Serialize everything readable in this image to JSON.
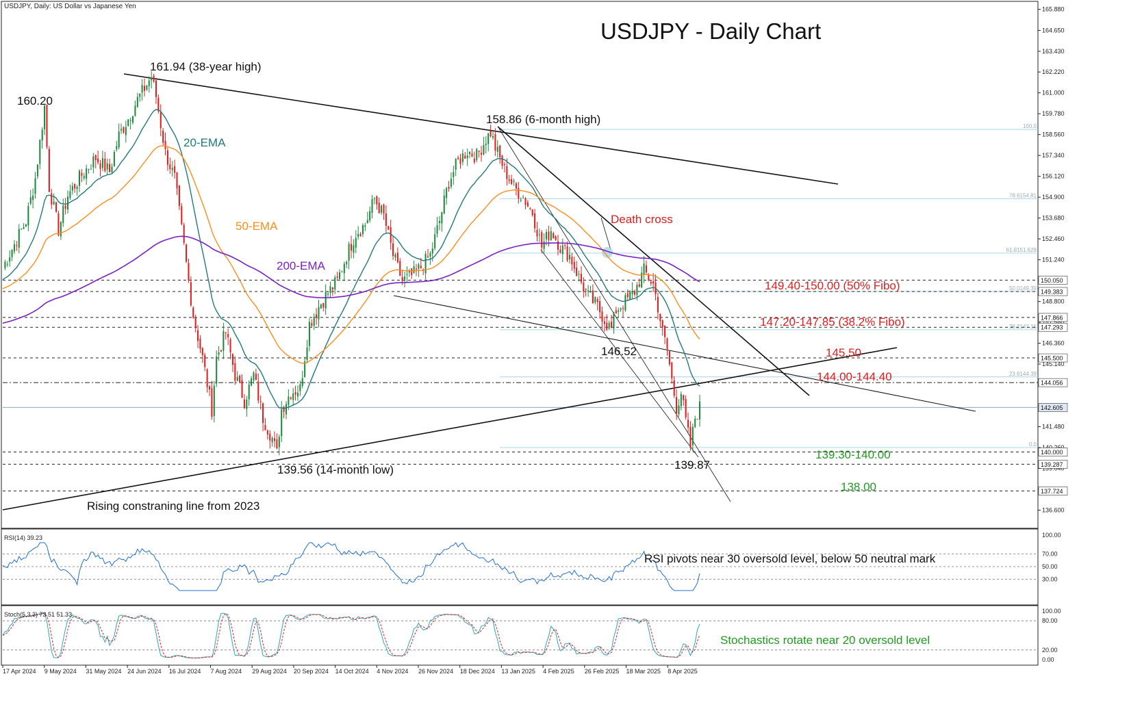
{
  "header": {
    "symbol_label": "USDJPY, Daily:  US Dollar vs Japanese Yen",
    "title": "USDJPY - Daily Chart"
  },
  "colors": {
    "bull": "#1a8a3a",
    "bear": "#e21b1b",
    "ema20": "#1f7a7a",
    "ema50": "#ff8c1a",
    "ema200": "#7a1fc2",
    "rsi": "#1f6fd6",
    "stoch_main": "#2aa6b8",
    "stoch_signal": "#e21b1b",
    "annot_red": "#e21b1b",
    "annot_green": "#1f9a1f",
    "fibo_line": "#a8d5e8"
  },
  "chart_data": [
    {
      "type": "candlestick",
      "title": "USDJPY - Daily Chart",
      "ylim": [
        135.8,
        166.2
      ],
      "price_axis_ticks": [
        "165.880",
        "164.650",
        "163.430",
        "162.220",
        "161.000",
        "159.780",
        "158.560",
        "157.340",
        "156.120",
        "154.900",
        "153.680",
        "152.460",
        "151.240",
        "150.020",
        "148.800",
        "147.580",
        "146.360",
        "145.140",
        "143.920",
        "142.700",
        "141.480",
        "140.260",
        "139.040",
        "137.820",
        "136.600"
      ],
      "price_axis_tags": [
        {
          "price": 150.05,
          "text": "150.050"
        },
        {
          "price": 149.383,
          "text": "149.383"
        },
        {
          "price": 147.866,
          "text": "147.866"
        },
        {
          "price": 147.293,
          "text": "147.293"
        },
        {
          "price": 145.5,
          "text": "145.500"
        },
        {
          "price": 144.056,
          "text": "144.056"
        },
        {
          "price": 142.605,
          "text": "142.605"
        },
        {
          "price": 140.0,
          "text": "140.000"
        },
        {
          "price": 139.287,
          "text": "139.287"
        },
        {
          "price": 137.724,
          "text": "137.724"
        }
      ],
      "date_labels": [
        "17 Apr 2024",
        "9 May 2024",
        "31 May 2024",
        "24 Jun 2024",
        "16 Jul 2024",
        "7 Aug 2024",
        "29 Aug 2024",
        "20 Sep 2024",
        "14 Oct 2024",
        "4 Nov 2024",
        "26 Nov 2024",
        "18 Dec 2024",
        "13 Jan 2025",
        "4 Feb 2025",
        "26 Feb 2025",
        "18 Mar 2025",
        "8 Apr 2025"
      ],
      "key_prices": [
        {
          "date": "2024-04-29",
          "price": 160.2,
          "label": "160.20"
        },
        {
          "date": "2024-07-03",
          "price": 161.94,
          "label": "161.94 (38-year high)"
        },
        {
          "date": "2024-09-16",
          "price": 139.56,
          "label": "139.56 (14-month low)"
        },
        {
          "date": "2025-01-10",
          "price": 158.86,
          "label": "158.86 (6-month high)"
        },
        {
          "date": "2025-03-11",
          "price": 146.52,
          "label": "146.52"
        },
        {
          "date": "2025-04-22",
          "price": 139.87,
          "label": "139.87"
        }
      ],
      "series": [
        {
          "name": "20-EMA"
        },
        {
          "name": "50-EMA"
        },
        {
          "name": "200-EMA"
        }
      ],
      "fibonacci_levels": [
        {
          "label": "100.0",
          "price": 158.86
        },
        {
          "label": "78.6154.81",
          "price": 154.81
        },
        {
          "label": "61.8151.628",
          "price": 151.628
        },
        {
          "label": "50.0149.39",
          "price": 149.39
        },
        {
          "label": "38.2147.15",
          "price": 147.15
        },
        {
          "label": "23.6144.39",
          "price": 144.39
        },
        {
          "label": "0.0",
          "price": 140.26
        }
      ],
      "annotations": [
        {
          "text": "Death cross",
          "color": "red"
        },
        {
          "text": "149.40-150.00 (50% Fibo)",
          "color": "red"
        },
        {
          "text": "147.20-147.85 (38.2% Fibo)",
          "color": "red"
        },
        {
          "text": "145.50",
          "color": "red"
        },
        {
          "text": "144.00-144.40",
          "color": "red"
        },
        {
          "text": "139.30-140.00",
          "color": "green"
        },
        {
          "text": "138.00",
          "color": "green"
        },
        {
          "text": "Rising constraning line from 2023",
          "color": "black"
        }
      ],
      "horizontal_levels": [
        150.05,
        149.383,
        147.866,
        147.293,
        145.5,
        144.056,
        140.0,
        139.287,
        137.724
      ],
      "last_price": 142.605
    },
    {
      "type": "line",
      "indicator_label": "RSI(14) 39.23",
      "ylim": [
        0,
        100
      ],
      "tick_labels": [
        "100.00",
        "70.00",
        "50.00",
        "30.00"
      ],
      "last_value": 39.23,
      "annotation": "RSI pivots near 30 oversold level, below 50 neutral mark"
    },
    {
      "type": "line",
      "indicator_label": "Stoch(5,3,3) 73.51 51.33",
      "ylim": [
        0,
        100
      ],
      "tick_labels": [
        "100.00",
        "80.00",
        "20.00",
        "0.00"
      ],
      "last_values": {
        "main": 73.51,
        "signal": 51.33
      },
      "annotation": "Stochastics rotate near 20 oversold level"
    }
  ]
}
